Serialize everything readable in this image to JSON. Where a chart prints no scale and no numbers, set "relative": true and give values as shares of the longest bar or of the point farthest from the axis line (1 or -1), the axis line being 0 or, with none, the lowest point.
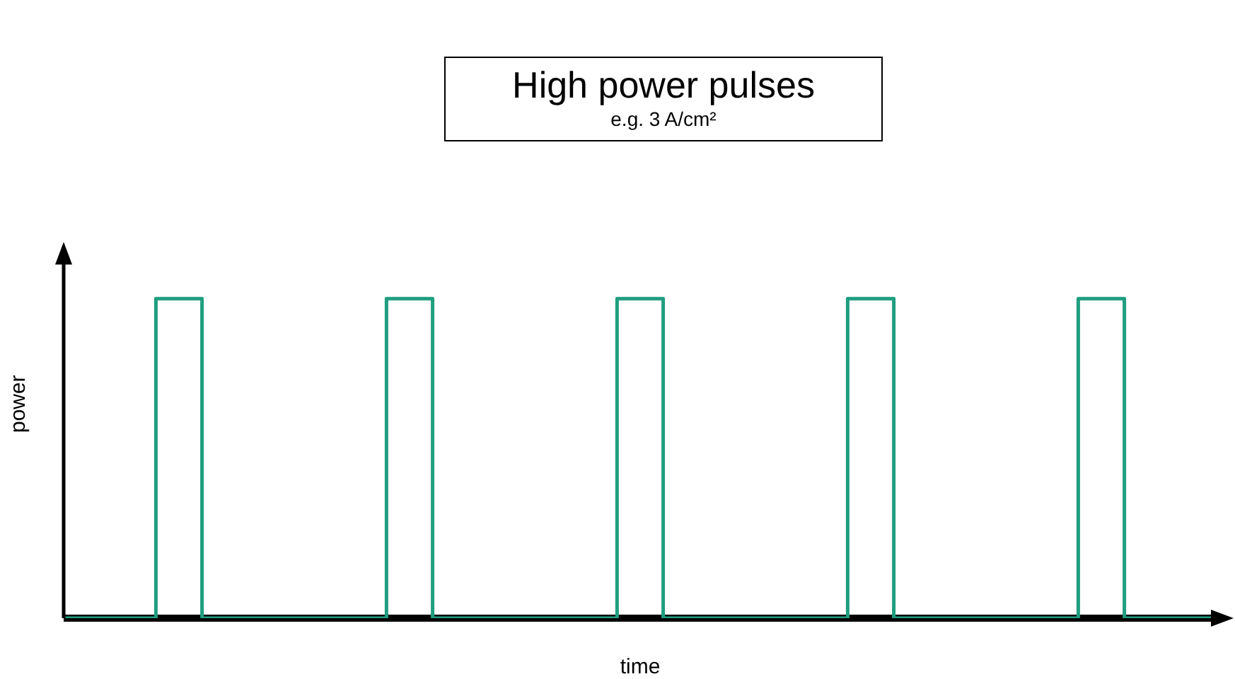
{
  "chart_data": {
    "type": "step",
    "title": "High power pulses",
    "subtitle": "e.g. 3 A/cm²",
    "xlabel": "time",
    "ylabel": "power",
    "relative": true,
    "categories": [
      null,
      null,
      null,
      null,
      null,
      null,
      null,
      null,
      null,
      null,
      null,
      null,
      null,
      null,
      null,
      null,
      null,
      null,
      null,
      null,
      null,
      null,
      null,
      null,
      null,
      null
    ],
    "series": [
      {
        "color": "#1f9e7f",
        "values": [
          0,
          0,
          1,
          0,
          0,
          0,
          0,
          1,
          0,
          0,
          0,
          0,
          1,
          0,
          0,
          0,
          0,
          1,
          0,
          0,
          0,
          0,
          1,
          0,
          0,
          0
        ]
      }
    ],
    "grid": false,
    "legend": false,
    "marker": "none",
    "line_style": "solid"
  }
}
